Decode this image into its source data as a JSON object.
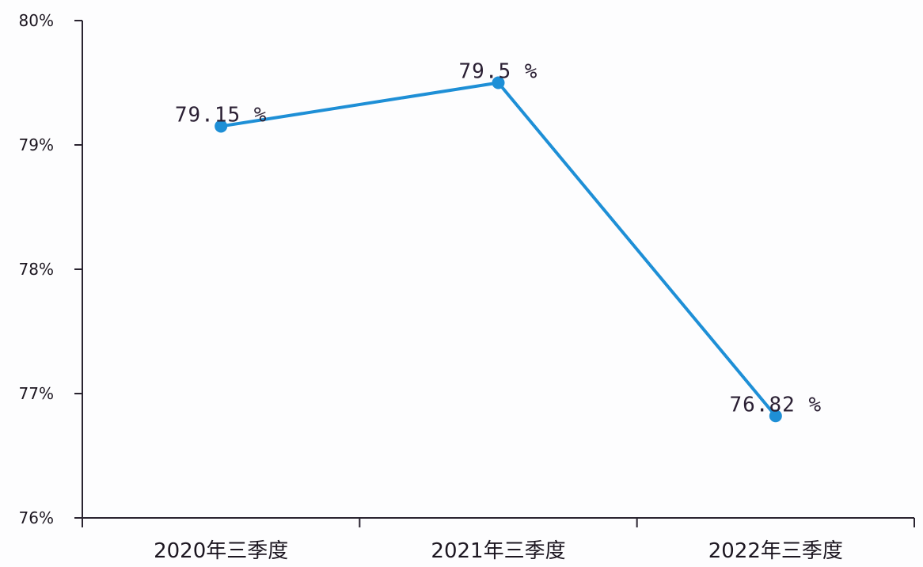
{
  "chart_data": {
    "type": "line",
    "categories": [
      "2020年三季度",
      "2021年三季度",
      "2022年三季度"
    ],
    "series": [
      {
        "values": [
          79.15,
          79.5,
          76.82
        ]
      }
    ],
    "data_labels": [
      "79.15 %",
      "79.5 %",
      "76.82 %"
    ],
    "y_ticks": [
      76,
      77,
      78,
      79,
      80
    ],
    "y_tick_labels": [
      "76%",
      "77%",
      "78%",
      "79%",
      "80%"
    ],
    "ylim": [
      76,
      80
    ],
    "title": "",
    "xlabel": "",
    "ylabel": "",
    "grid": false,
    "legend": "none",
    "colors": {
      "line": "#1e8fd6",
      "axis": "#2a2430",
      "text": "#1c1620"
    }
  }
}
